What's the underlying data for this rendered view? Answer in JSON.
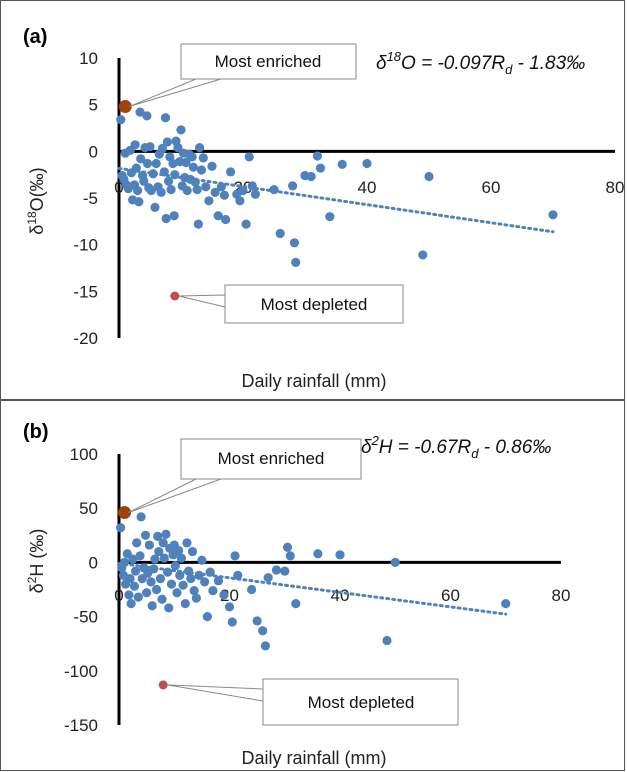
{
  "chart_data": [
    {
      "type": "scatter",
      "panel_label": "(a)",
      "equation": {
        "lhs_pre": "δ",
        "lhs_sup": "18",
        "lhs_post": "O = -0.097R",
        "sub": "d",
        "rhs": " - 1.83‰"
      },
      "xlabel": "Daily rainfall (mm)",
      "ylabel_pre": "δ",
      "ylabel_sup": "18",
      "ylabel_post": "O(‰)",
      "xlim": [
        0,
        80
      ],
      "ylim": [
        -20,
        10
      ],
      "xticks": [
        0,
        20,
        40,
        60,
        80
      ],
      "yticks": [
        10,
        5,
        0,
        -5,
        -10,
        -15,
        -20
      ],
      "callouts": {
        "enriched": "Most enriched",
        "depleted": "Most depleted"
      },
      "highlight": {
        "enriched": {
          "x": 1.0,
          "y": 4.8
        },
        "depleted": {
          "x": 9.0,
          "y": -15.5
        }
      },
      "trendline": {
        "slope": -0.097,
        "intercept": -1.83,
        "x_range": [
          0,
          70
        ]
      },
      "colors": {
        "points": "#4f81bd",
        "enriched": "#a0420c",
        "depleted": "#c0504d",
        "trend": "#4f81bd"
      },
      "points": [
        [
          0.3,
          3.4
        ],
        [
          0.5,
          -2.6
        ],
        [
          0.8,
          -3.0
        ],
        [
          1.0,
          -0.2
        ],
        [
          1.2,
          -3.6
        ],
        [
          1.5,
          -4.0
        ],
        [
          1.8,
          0.1
        ],
        [
          2.0,
          -2.3
        ],
        [
          2.2,
          -5.2
        ],
        [
          2.5,
          -3.6
        ],
        [
          2.6,
          0.7
        ],
        [
          2.8,
          -1.8
        ],
        [
          3.0,
          -4.2
        ],
        [
          3.2,
          -5.4
        ],
        [
          3.4,
          4.2
        ],
        [
          3.5,
          -0.8
        ],
        [
          3.8,
          -2.6
        ],
        [
          4.0,
          -3.2
        ],
        [
          4.2,
          0.4
        ],
        [
          4.5,
          3.8
        ],
        [
          4.6,
          -1.3
        ],
        [
          4.8,
          -3.9
        ],
        [
          5.0,
          0.5
        ],
        [
          5.2,
          -4.2
        ],
        [
          5.5,
          -2.4
        ],
        [
          5.8,
          -6.0
        ],
        [
          6.0,
          -1.3
        ],
        [
          6.3,
          -3.8
        ],
        [
          6.5,
          -0.3
        ],
        [
          6.8,
          -4.4
        ],
        [
          7.0,
          0.3
        ],
        [
          7.3,
          -2.2
        ],
        [
          7.5,
          3.6
        ],
        [
          7.6,
          -7.2
        ],
        [
          7.8,
          1.0
        ],
        [
          8.0,
          -3.2
        ],
        [
          8.2,
          -0.6
        ],
        [
          8.4,
          -4.1
        ],
        [
          8.7,
          -1.3
        ],
        [
          8.9,
          -6.9
        ],
        [
          9.0,
          -2.5
        ],
        [
          9.2,
          1.1
        ],
        [
          9.5,
          0.4
        ],
        [
          9.8,
          -1.1
        ],
        [
          10.0,
          2.3
        ],
        [
          10.2,
          -3.7
        ],
        [
          10.4,
          -0.2
        ],
        [
          10.6,
          -2.8
        ],
        [
          10.8,
          -1.2
        ],
        [
          11.0,
          -4.2
        ],
        [
          11.3,
          -0.3
        ],
        [
          11.5,
          -3.0
        ],
        [
          11.8,
          -0.6
        ],
        [
          12.0,
          -1.7
        ],
        [
          12.3,
          -3.3
        ],
        [
          12.6,
          -4.1
        ],
        [
          12.8,
          -7.8
        ],
        [
          13.0,
          0.4
        ],
        [
          13.3,
          -2.0
        ],
        [
          13.6,
          -0.7
        ],
        [
          14.0,
          -3.8
        ],
        [
          14.5,
          -5.3
        ],
        [
          15.0,
          -1.6
        ],
        [
          15.5,
          -4.4
        ],
        [
          16.0,
          -6.9
        ],
        [
          16.5,
          -3.8
        ],
        [
          17.0,
          -4.7
        ],
        [
          17.2,
          -7.3
        ],
        [
          18.0,
          -2.2
        ],
        [
          19.0,
          -4.6
        ],
        [
          19.5,
          -5.3
        ],
        [
          20.0,
          -4.2
        ],
        [
          20.5,
          -7.8
        ],
        [
          21.0,
          -0.6
        ],
        [
          21.5,
          -3.7
        ],
        [
          22.0,
          -4.6
        ],
        [
          25.0,
          -4.1
        ],
        [
          26.0,
          -8.8
        ],
        [
          28.0,
          -3.7
        ],
        [
          28.3,
          -9.8
        ],
        [
          28.5,
          -11.9
        ],
        [
          30.0,
          -2.6
        ],
        [
          31.0,
          -2.7
        ],
        [
          32.0,
          -0.5
        ],
        [
          32.5,
          -1.8
        ],
        [
          34.0,
          -7.0
        ],
        [
          36.0,
          -1.4
        ],
        [
          40.0,
          -1.3
        ],
        [
          49.0,
          -11.1
        ],
        [
          50.0,
          -2.7
        ],
        [
          70.0,
          -6.8
        ]
      ]
    },
    {
      "type": "scatter",
      "panel_label": "(b)",
      "equation": {
        "lhs_pre": "δ",
        "lhs_sup": "2",
        "lhs_post": "H = -0.67R",
        "sub": "d",
        "rhs": " - 0.86‰"
      },
      "xlabel": "Daily rainfall (mm)",
      "ylabel_pre": "δ",
      "ylabel_sup": "2",
      "ylabel_post": "H (‰)",
      "xlim": [
        0,
        80
      ],
      "ylim": [
        -150,
        100
      ],
      "xticks": [
        0,
        20,
        40,
        60,
        80
      ],
      "yticks": [
        100,
        50,
        0,
        -50,
        -100,
        -150
      ],
      "callouts": {
        "enriched": "Most enriched",
        "depleted": "Most depleted"
      },
      "highlight": {
        "enriched": {
          "x": 1.0,
          "y": 46
        },
        "depleted": {
          "x": 8.0,
          "y": -113
        }
      },
      "trendline": {
        "slope": -0.67,
        "intercept": -0.86,
        "x_range": [
          0,
          70
        ]
      },
      "colors": {
        "points": "#4f81bd",
        "enriched": "#a0420c",
        "depleted": "#c0504d",
        "trend": "#4f81bd"
      },
      "points": [
        [
          0.3,
          32
        ],
        [
          0.5,
          -5
        ],
        [
          0.8,
          -12
        ],
        [
          1.0,
          0
        ],
        [
          1.2,
          -20
        ],
        [
          1.5,
          8
        ],
        [
          1.8,
          -30
        ],
        [
          2.0,
          -15
        ],
        [
          2.2,
          -38
        ],
        [
          2.5,
          3
        ],
        [
          2.8,
          -22
        ],
        [
          3.0,
          -8
        ],
        [
          3.2,
          18
        ],
        [
          3.5,
          -32
        ],
        [
          3.8,
          6
        ],
        [
          4.0,
          42
        ],
        [
          4.2,
          -15
        ],
        [
          4.5,
          -5
        ],
        [
          4.8,
          25
        ],
        [
          5.0,
          -28
        ],
        [
          5.2,
          -10
        ],
        [
          5.5,
          16
        ],
        [
          5.8,
          -18
        ],
        [
          6.0,
          -40
        ],
        [
          6.3,
          -6
        ],
        [
          6.5,
          3
        ],
        [
          6.8,
          -25
        ],
        [
          7.0,
          24
        ],
        [
          7.2,
          10
        ],
        [
          7.5,
          -15
        ],
        [
          7.8,
          -34
        ],
        [
          8.0,
          18
        ],
        [
          8.2,
          4
        ],
        [
          8.5,
          26
        ],
        [
          8.8,
          -9
        ],
        [
          9.0,
          -42
        ],
        [
          9.2,
          13
        ],
        [
          9.5,
          -20
        ],
        [
          9.8,
          7
        ],
        [
          10.0,
          16
        ],
        [
          10.2,
          -3
        ],
        [
          10.5,
          -28
        ],
        [
          10.8,
          11
        ],
        [
          11.0,
          -12
        ],
        [
          11.3,
          4
        ],
        [
          11.6,
          -21
        ],
        [
          12.0,
          -38
        ],
        [
          12.3,
          18
        ],
        [
          12.6,
          -8
        ],
        [
          13.0,
          -15
        ],
        [
          13.3,
          10
        ],
        [
          13.6,
          -26
        ],
        [
          14.0,
          -33
        ],
        [
          14.5,
          -12
        ],
        [
          15.0,
          2
        ],
        [
          15.5,
          -18
        ],
        [
          16.0,
          -50
        ],
        [
          16.5,
          -9
        ],
        [
          17.0,
          -26
        ],
        [
          18.0,
          -17
        ],
        [
          19.0,
          -30
        ],
        [
          20.0,
          -41
        ],
        [
          20.5,
          -55
        ],
        [
          21.0,
          6
        ],
        [
          21.5,
          -12
        ],
        [
          24.0,
          -25
        ],
        [
          25.0,
          -54
        ],
        [
          26.0,
          -63
        ],
        [
          26.5,
          -77
        ],
        [
          27.0,
          -14
        ],
        [
          28.5,
          -7
        ],
        [
          30.0,
          -8
        ],
        [
          30.5,
          14
        ],
        [
          31.0,
          6
        ],
        [
          32.0,
          -38
        ],
        [
          36.0,
          8
        ],
        [
          40.0,
          7
        ],
        [
          48.5,
          -72
        ],
        [
          50.0,
          0
        ],
        [
          70.0,
          -38
        ]
      ]
    }
  ]
}
